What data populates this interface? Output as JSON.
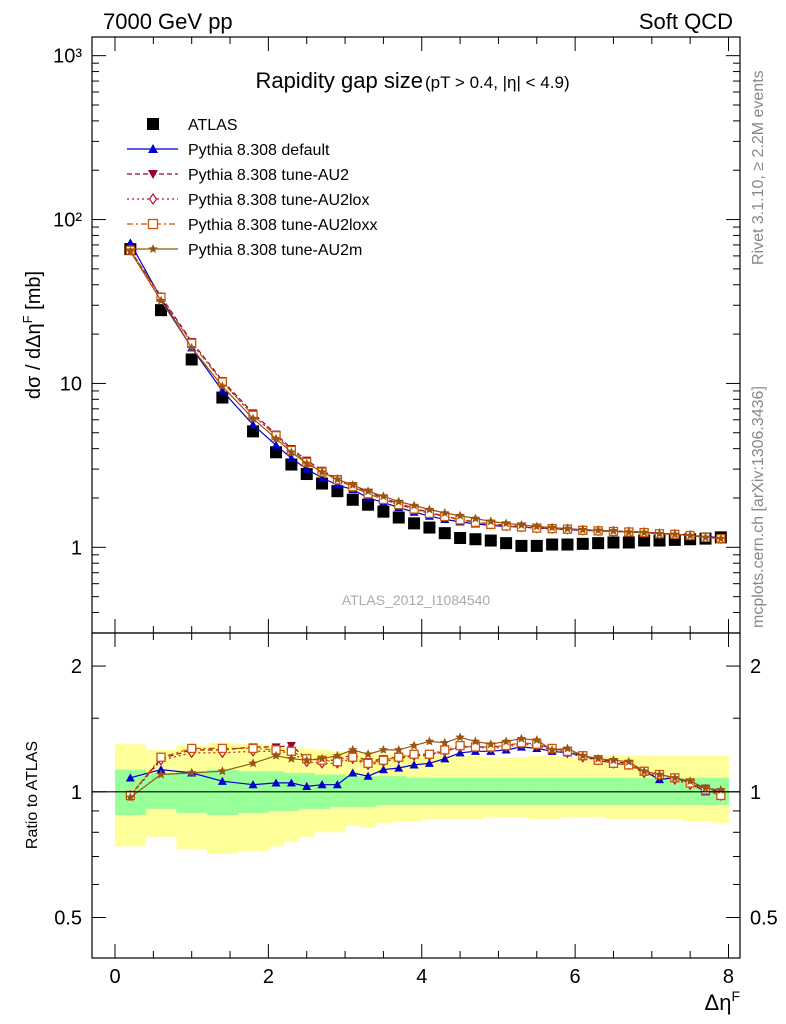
{
  "header": {
    "energy_label": "7000 GeV pp",
    "process_label": "Soft QCD",
    "side_label_top": "Rivet 3.1.10, ≥ 2.2M events",
    "side_label_bottom": "mcplots.cern.ch [arXiv:1306.3436]",
    "watermark": "ATLAS_2012_I1084540"
  },
  "chart_data": [
    {
      "type": "line",
      "title": "Rapidity gap size",
      "subtitle": "(pT > 0.4, |η| < 4.9)",
      "xlabel": "ΔηF",
      "ylabel": "dσ / dΔηF [mb]",
      "yscale": "log",
      "xlim": [
        -0.3,
        8.15
      ],
      "ylim": [
        0.3,
        1300
      ],
      "y_tick_labels": [
        "1",
        "10",
        "10²",
        "10³"
      ],
      "x": [
        0.2,
        0.6,
        1.0,
        1.4,
        1.8,
        2.1,
        2.3,
        2.5,
        2.7,
        2.9,
        3.1,
        3.3,
        3.5,
        3.7,
        3.9,
        4.1,
        4.3,
        4.5,
        4.7,
        4.9,
        5.1,
        5.3,
        5.5,
        5.7,
        5.9,
        6.1,
        6.3,
        6.5,
        6.7,
        6.9,
        7.1,
        7.3,
        7.5,
        7.7,
        7.9
      ],
      "series": [
        {
          "name": "ATLAS",
          "color": "#000000",
          "marker": "square",
          "values": [
            66,
            28,
            14,
            8.2,
            5.1,
            3.8,
            3.2,
            2.8,
            2.45,
            2.2,
            1.95,
            1.82,
            1.65,
            1.52,
            1.4,
            1.32,
            1.22,
            1.14,
            1.12,
            1.1,
            1.06,
            1.02,
            1.02,
            1.04,
            1.04,
            1.05,
            1.06,
            1.07,
            1.07,
            1.1,
            1.1,
            1.11,
            1.12,
            1.13,
            1.15
          ]
        },
        {
          "name": "Pythia 8.308 default",
          "color": "#0000cc",
          "marker": "triangle-up",
          "values": [
            72,
            33,
            16.5,
            9.0,
            5.6,
            4.2,
            3.5,
            3.0,
            2.65,
            2.4,
            2.25,
            2.0,
            1.88,
            1.75,
            1.64,
            1.55,
            1.48,
            1.43,
            1.39,
            1.36,
            1.34,
            1.33,
            1.31,
            1.3,
            1.28,
            1.27,
            1.26,
            1.25,
            1.24,
            1.23,
            1.22,
            1.2,
            1.18,
            1.16,
            1.15
          ]
        },
        {
          "name": "Pythia 8.308 tune-AU2",
          "color": "#990033",
          "marker": "triangle-down",
          "values": [
            65,
            34,
            18,
            10.4,
            6.6,
            4.9,
            4.0,
            3.4,
            2.95,
            2.62,
            2.38,
            2.17,
            2.0,
            1.85,
            1.73,
            1.63,
            1.55,
            1.48,
            1.43,
            1.39,
            1.36,
            1.34,
            1.32,
            1.31,
            1.3,
            1.28,
            1.27,
            1.26,
            1.25,
            1.24,
            1.22,
            1.2,
            1.19,
            1.16,
            1.14
          ]
        },
        {
          "name": "Pythia 8.308 tune-AU2lox",
          "color": "#bb1133",
          "marker": "diamond-open",
          "values": [
            65,
            33.5,
            17.6,
            10.2,
            6.4,
            4.8,
            3.9,
            3.3,
            2.88,
            2.58,
            2.34,
            2.12,
            1.96,
            1.82,
            1.71,
            1.61,
            1.54,
            1.47,
            1.42,
            1.38,
            1.35,
            1.33,
            1.31,
            1.3,
            1.29,
            1.27,
            1.26,
            1.25,
            1.24,
            1.23,
            1.21,
            1.2,
            1.18,
            1.15,
            1.13
          ]
        },
        {
          "name": "Pythia 8.308 tune-AU2loxx",
          "color": "#cc5500",
          "marker": "square-open",
          "values": [
            65,
            33.5,
            17.6,
            10.2,
            6.4,
            4.8,
            3.9,
            3.3,
            2.88,
            2.58,
            2.34,
            2.12,
            1.96,
            1.82,
            1.71,
            1.61,
            1.54,
            1.47,
            1.42,
            1.38,
            1.35,
            1.33,
            1.31,
            1.3,
            1.29,
            1.27,
            1.26,
            1.25,
            1.24,
            1.23,
            1.21,
            1.2,
            1.18,
            1.15,
            1.13
          ]
        },
        {
          "name": "Pythia 8.308 tune-AU2m",
          "color": "#995511",
          "marker": "star",
          "values": [
            64,
            32,
            16.5,
            9.6,
            6.1,
            4.6,
            3.8,
            3.25,
            2.88,
            2.6,
            2.4,
            2.2,
            2.05,
            1.9,
            1.8,
            1.7,
            1.62,
            1.56,
            1.5,
            1.44,
            1.4,
            1.37,
            1.34,
            1.32,
            1.3,
            1.28,
            1.27,
            1.26,
            1.24,
            1.23,
            1.21,
            1.2,
            1.18,
            1.15,
            1.13
          ]
        }
      ]
    },
    {
      "type": "line",
      "ylabel": "Ratio to ATLAS",
      "xlabel": "ΔηF",
      "yscale": "log",
      "xlim": [
        -0.3,
        8.15
      ],
      "ylim": [
        0.4,
        2.4
      ],
      "y_tick_labels": [
        "0.5",
        "1",
        "2"
      ],
      "x_tick_labels": [
        "0",
        "2",
        "4",
        "6",
        "8"
      ],
      "reference_line": 1.0,
      "band_edges": [
        0.0,
        0.4,
        0.8,
        1.2,
        1.6,
        2.0,
        2.2,
        2.4,
        2.6,
        2.8,
        3.0,
        3.2,
        3.4,
        3.6,
        3.8,
        4.0,
        4.2,
        4.4,
        4.6,
        4.8,
        5.0,
        5.2,
        5.4,
        5.6,
        5.8,
        6.0,
        6.2,
        6.4,
        6.6,
        6.8,
        7.0,
        7.2,
        7.4,
        7.6,
        7.8,
        8.0
      ],
      "bands": [
        {
          "name": "outer",
          "color": "#ffff99",
          "lower": [
            0.74,
            0.78,
            0.73,
            0.71,
            0.72,
            0.74,
            0.76,
            0.78,
            0.8,
            0.8,
            0.83,
            0.82,
            0.84,
            0.85,
            0.85,
            0.86,
            0.86,
            0.86,
            0.86,
            0.87,
            0.87,
            0.87,
            0.86,
            0.86,
            0.87,
            0.87,
            0.87,
            0.86,
            0.86,
            0.86,
            0.86,
            0.86,
            0.85,
            0.85,
            0.84
          ],
          "upper": [
            1.3,
            1.26,
            1.29,
            1.31,
            1.3,
            1.29,
            1.28,
            1.27,
            1.26,
            1.25,
            1.24,
            1.24,
            1.23,
            1.23,
            1.22,
            1.22,
            1.22,
            1.22,
            1.22,
            1.21,
            1.21,
            1.21,
            1.22,
            1.22,
            1.21,
            1.21,
            1.21,
            1.22,
            1.22,
            1.22,
            1.22,
            1.22,
            1.22,
            1.22,
            1.22
          ]
        },
        {
          "name": "inner",
          "color": "#99ff99",
          "lower": [
            0.88,
            0.91,
            0.89,
            0.88,
            0.89,
            0.9,
            0.9,
            0.91,
            0.91,
            0.92,
            0.92,
            0.92,
            0.93,
            0.93,
            0.93,
            0.93,
            0.93,
            0.93,
            0.93,
            0.93,
            0.93,
            0.93,
            0.93,
            0.93,
            0.93,
            0.93,
            0.93,
            0.93,
            0.93,
            0.93,
            0.93,
            0.93,
            0.93,
            0.93,
            0.93
          ],
          "upper": [
            1.13,
            1.11,
            1.12,
            1.13,
            1.12,
            1.12,
            1.11,
            1.11,
            1.1,
            1.1,
            1.09,
            1.09,
            1.09,
            1.09,
            1.08,
            1.08,
            1.08,
            1.08,
            1.08,
            1.08,
            1.08,
            1.08,
            1.08,
            1.08,
            1.08,
            1.08,
            1.08,
            1.08,
            1.08,
            1.08,
            1.08,
            1.08,
            1.08,
            1.08,
            1.08
          ]
        }
      ],
      "x": [
        0.2,
        0.6,
        1.0,
        1.4,
        1.8,
        2.1,
        2.3,
        2.5,
        2.7,
        2.9,
        3.1,
        3.3,
        3.5,
        3.7,
        3.9,
        4.1,
        4.3,
        4.5,
        4.7,
        4.9,
        5.1,
        5.3,
        5.5,
        5.7,
        5.9,
        6.1,
        6.3,
        6.5,
        6.7,
        6.9,
        7.1,
        7.3,
        7.5,
        7.7,
        7.9
      ],
      "series": [
        {
          "name": "Pythia 8.308 default",
          "color": "#0000cc",
          "marker": "triangle-up",
          "values": [
            1.08,
            1.13,
            1.11,
            1.06,
            1.04,
            1.05,
            1.05,
            1.03,
            1.04,
            1.04,
            1.11,
            1.09,
            1.13,
            1.14,
            1.16,
            1.17,
            1.2,
            1.24,
            1.25,
            1.25,
            1.26,
            1.28,
            1.27,
            1.25,
            1.24,
            1.22,
            1.19,
            1.17,
            1.16,
            1.12,
            1.07,
            1.08,
            1.05,
            1.0,
            1.0
          ]
        },
        {
          "name": "Pythia 8.308 tune-AU2",
          "color": "#990033",
          "marker": "triangle-down",
          "values": [
            0.98,
            1.2,
            1.26,
            1.26,
            1.28,
            1.28,
            1.29,
            1.2,
            1.19,
            1.19,
            1.23,
            1.18,
            1.2,
            1.21,
            1.22,
            1.23,
            1.25,
            1.28,
            1.28,
            1.28,
            1.29,
            1.31,
            1.3,
            1.27,
            1.25,
            1.22,
            1.2,
            1.18,
            1.17,
            1.12,
            1.1,
            1.08,
            1.05,
            1.02,
            1.0
          ]
        },
        {
          "name": "Pythia 8.308 tune-AU2lox",
          "color": "#bb1133",
          "marker": "diamond-open",
          "values": [
            0.98,
            1.19,
            1.24,
            1.24,
            1.25,
            1.25,
            1.24,
            1.18,
            1.17,
            1.17,
            1.2,
            1.16,
            1.18,
            1.2,
            1.22,
            1.22,
            1.25,
            1.28,
            1.28,
            1.27,
            1.28,
            1.3,
            1.29,
            1.26,
            1.24,
            1.21,
            1.19,
            1.17,
            1.16,
            1.11,
            1.09,
            1.07,
            1.04,
            1.01,
            0.98
          ]
        },
        {
          "name": "Pythia 8.308 tune-AU2loxx",
          "color": "#cc5500",
          "marker": "square-open",
          "values": [
            0.98,
            1.21,
            1.27,
            1.27,
            1.27,
            1.26,
            1.25,
            1.2,
            1.19,
            1.18,
            1.21,
            1.17,
            1.19,
            1.21,
            1.23,
            1.23,
            1.26,
            1.29,
            1.28,
            1.28,
            1.29,
            1.31,
            1.3,
            1.27,
            1.25,
            1.22,
            1.19,
            1.17,
            1.16,
            1.12,
            1.1,
            1.08,
            1.05,
            1.01,
            0.98
          ]
        },
        {
          "name": "Pythia 8.308 tune-AU2m",
          "color": "#995511",
          "marker": "star",
          "values": [
            0.97,
            1.1,
            1.11,
            1.12,
            1.17,
            1.22,
            1.2,
            1.19,
            1.2,
            1.22,
            1.26,
            1.23,
            1.26,
            1.26,
            1.29,
            1.32,
            1.31,
            1.35,
            1.32,
            1.3,
            1.32,
            1.34,
            1.33,
            1.26,
            1.27,
            1.22,
            1.2,
            1.19,
            1.18,
            1.12,
            1.1,
            1.08,
            1.06,
            1.02,
            1.01
          ]
        }
      ]
    }
  ]
}
